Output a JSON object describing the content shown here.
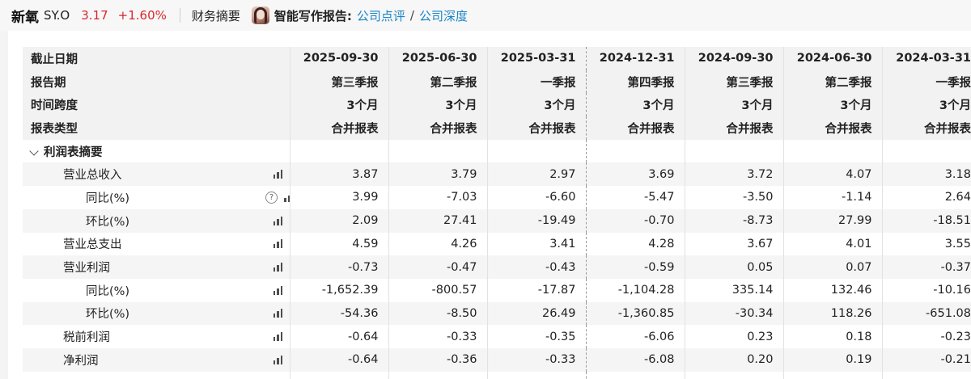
{
  "header": {
    "stock_name": "新氧",
    "ticker": "SY.O",
    "price": "3.17",
    "change": "+1.60%",
    "tab_financial": "财务摘要",
    "ai_label": "智能写作报告:",
    "link_company_review": "公司点评",
    "separator": "/",
    "link_company_depth": "公司深度"
  },
  "table": {
    "header_rows": [
      {
        "label": "截止日期",
        "cells": [
          "2025-09-30",
          "2025-06-30",
          "2025-03-31",
          "2024-12-31",
          "2024-09-30",
          "2024-06-30",
          "2024-03-31"
        ]
      },
      {
        "label": "报告期",
        "cells": [
          "第三季报",
          "第二季报",
          "一季报",
          "第四季报",
          "第三季报",
          "第二季报",
          "一季报"
        ]
      },
      {
        "label": "时间跨度",
        "cells": [
          "3个月",
          "3个月",
          "3个月",
          "3个月",
          "3个月",
          "3个月",
          "3个月"
        ]
      },
      {
        "label": "报表类型",
        "cells": [
          "合并报表",
          "合并报表",
          "合并报表",
          "合并报表",
          "合并报表",
          "合并报表",
          "合并报表"
        ]
      }
    ],
    "section_label": "利润表摘要",
    "rows": [
      {
        "label": "营业总收入",
        "cells": [
          "3.87",
          "3.79",
          "2.97",
          "3.69",
          "3.72",
          "4.07",
          "3.18"
        ]
      },
      {
        "label": "同比(%)",
        "help": "?",
        "cells": [
          "3.99",
          "-7.03",
          "-6.60",
          "-5.47",
          "-3.50",
          "-1.14",
          "2.64"
        ]
      },
      {
        "label": "环比(%)",
        "cells": [
          "2.09",
          "27.41",
          "-19.49",
          "-0.70",
          "-8.73",
          "27.99",
          "-18.51"
        ]
      },
      {
        "label": "营业总支出",
        "cells": [
          "4.59",
          "4.26",
          "3.41",
          "4.28",
          "3.67",
          "4.01",
          "3.55"
        ]
      },
      {
        "label": "营业利润",
        "cells": [
          "-0.73",
          "-0.47",
          "-0.43",
          "-0.59",
          "0.05",
          "0.07",
          "-0.37"
        ]
      },
      {
        "label": "同比(%)",
        "cells": [
          "-1,652.39",
          "-800.57",
          "-17.87",
          "-1,104.28",
          "335.14",
          "132.46",
          "-10.16"
        ]
      },
      {
        "label": "环比(%)",
        "cells": [
          "-54.36",
          "-8.50",
          "26.49",
          "-1,360.85",
          "-30.34",
          "118.26",
          "-651.08"
        ]
      },
      {
        "label": "税前利润",
        "cells": [
          "-0.64",
          "-0.33",
          "-0.35",
          "-6.06",
          "0.23",
          "0.18",
          "-0.23"
        ]
      },
      {
        "label": "净利润",
        "cells": [
          "-0.64",
          "-0.36",
          "-0.33",
          "-6.08",
          "0.20",
          "0.19",
          "-0.21"
        ]
      }
    ]
  },
  "colors": {
    "negative": "#d8282e",
    "link": "#1a86c8",
    "header_bg": "#f2f2f2"
  },
  "icons": {
    "chart": "bar-chart-icon",
    "help": "help-icon",
    "expand": "chevron-down-icon"
  }
}
